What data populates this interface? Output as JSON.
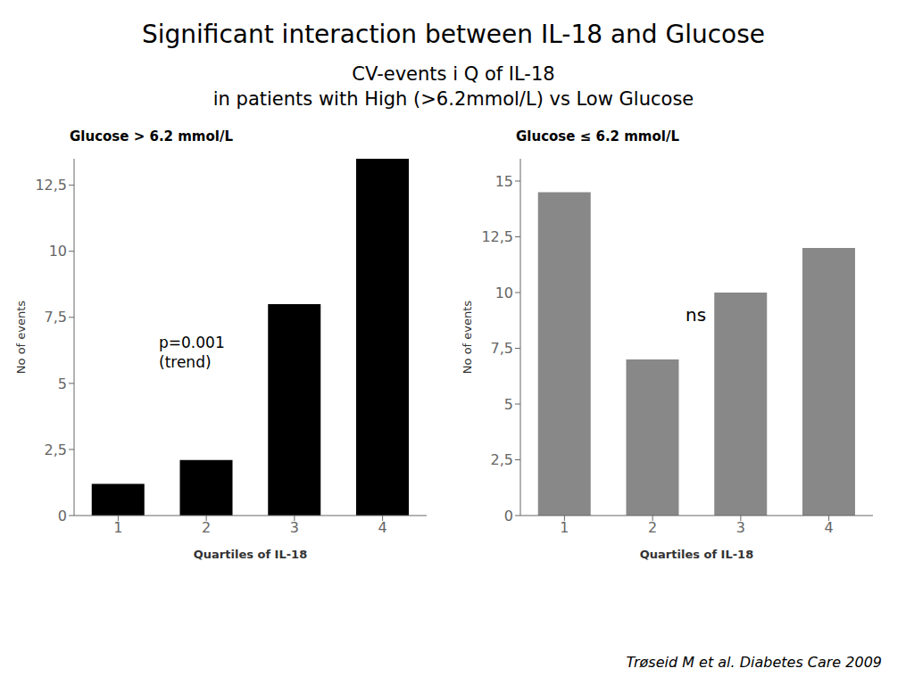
{
  "title": "Significant interaction between IL-18 and Glucose",
  "subtitle": [
    "CV-events i Q of IL-18",
    "in patients with High (>6.2mmol/L) vs Low Glucose"
  ],
  "citation": "Trøseid M et al. Diabetes Care 2009",
  "chart_data": [
    {
      "type": "bar",
      "title": "Glucose > 6.2 mmol/L",
      "categories": [
        1,
        2,
        3,
        4
      ],
      "values": [
        1.2,
        2.1,
        8.0,
        13.5
      ],
      "color": "#000000",
      "xlabel": "Quartiles of IL-18",
      "ylabel": "No of events",
      "ylim": [
        0,
        13.5
      ],
      "yticks": [
        0,
        {
          "value": 2.5,
          "label": "2,5"
        },
        5,
        {
          "value": 7.5,
          "label": "7,5"
        },
        10,
        {
          "value": 12.5,
          "label": "12,5"
        }
      ],
      "grid": false,
      "annotations": [
        "p=0.001",
        "(trend)"
      ]
    },
    {
      "type": "bar",
      "title": "Glucose ≤ 6.2 mmol/L",
      "categories": [
        1,
        2,
        3,
        4
      ],
      "values": [
        14.5,
        7.0,
        10.0,
        12.0
      ],
      "color": "#888888",
      "xlabel": "Quartiles of IL-18",
      "ylabel": "No of events",
      "ylim": [
        0,
        16
      ],
      "yticks": [
        0,
        {
          "value": 2.5,
          "label": "2,5"
        },
        5,
        {
          "value": 7.5,
          "label": "7,5"
        },
        10,
        {
          "value": 12.5,
          "label": "12,5"
        },
        15
      ],
      "grid": false,
      "annotations": [
        "ns"
      ]
    }
  ]
}
